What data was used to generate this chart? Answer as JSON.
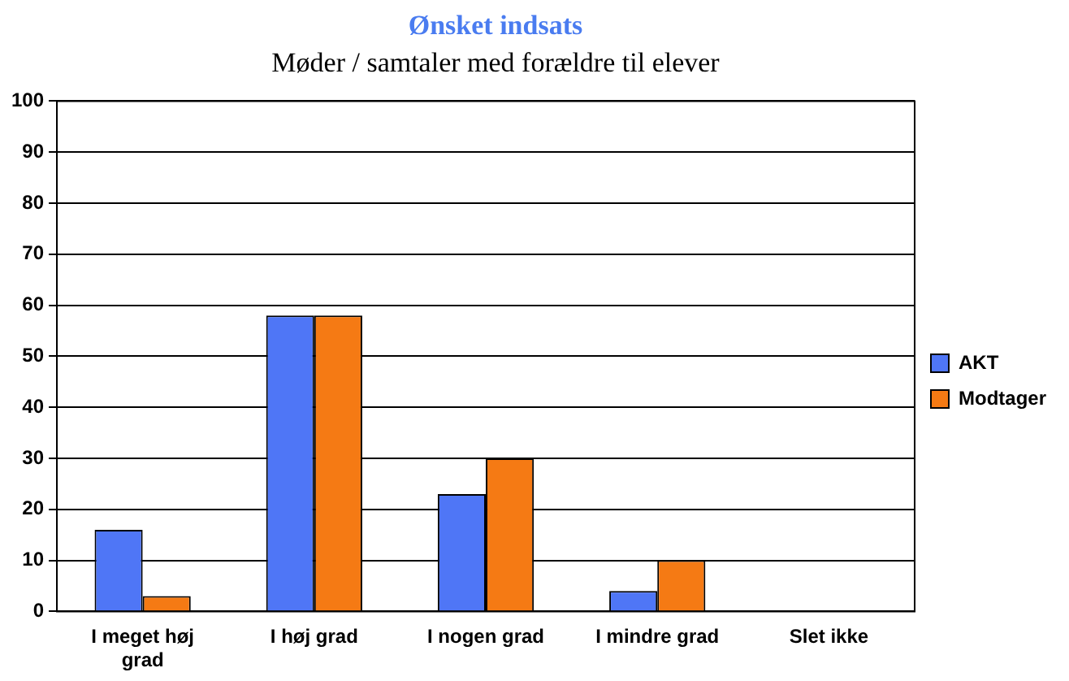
{
  "chart_data": {
    "type": "bar",
    "title": "Ønsket indsats",
    "subtitle": "Møder / samtaler med forældre til elever",
    "categories": [
      "I meget høj grad",
      "I høj grad",
      "I nogen grad",
      "I mindre grad",
      "Slet ikke"
    ],
    "series": [
      {
        "name": "AKT",
        "color": "#4f76f6",
        "values": [
          16,
          58,
          23,
          4,
          0
        ]
      },
      {
        "name": "Modtager",
        "color": "#f57a14",
        "values": [
          3,
          58,
          30,
          10,
          0
        ]
      }
    ],
    "ylim": [
      0,
      100
    ],
    "yticks": [
      0,
      10,
      20,
      30,
      40,
      50,
      60,
      70,
      80,
      90,
      100
    ],
    "grid": "y",
    "legend": "right"
  }
}
